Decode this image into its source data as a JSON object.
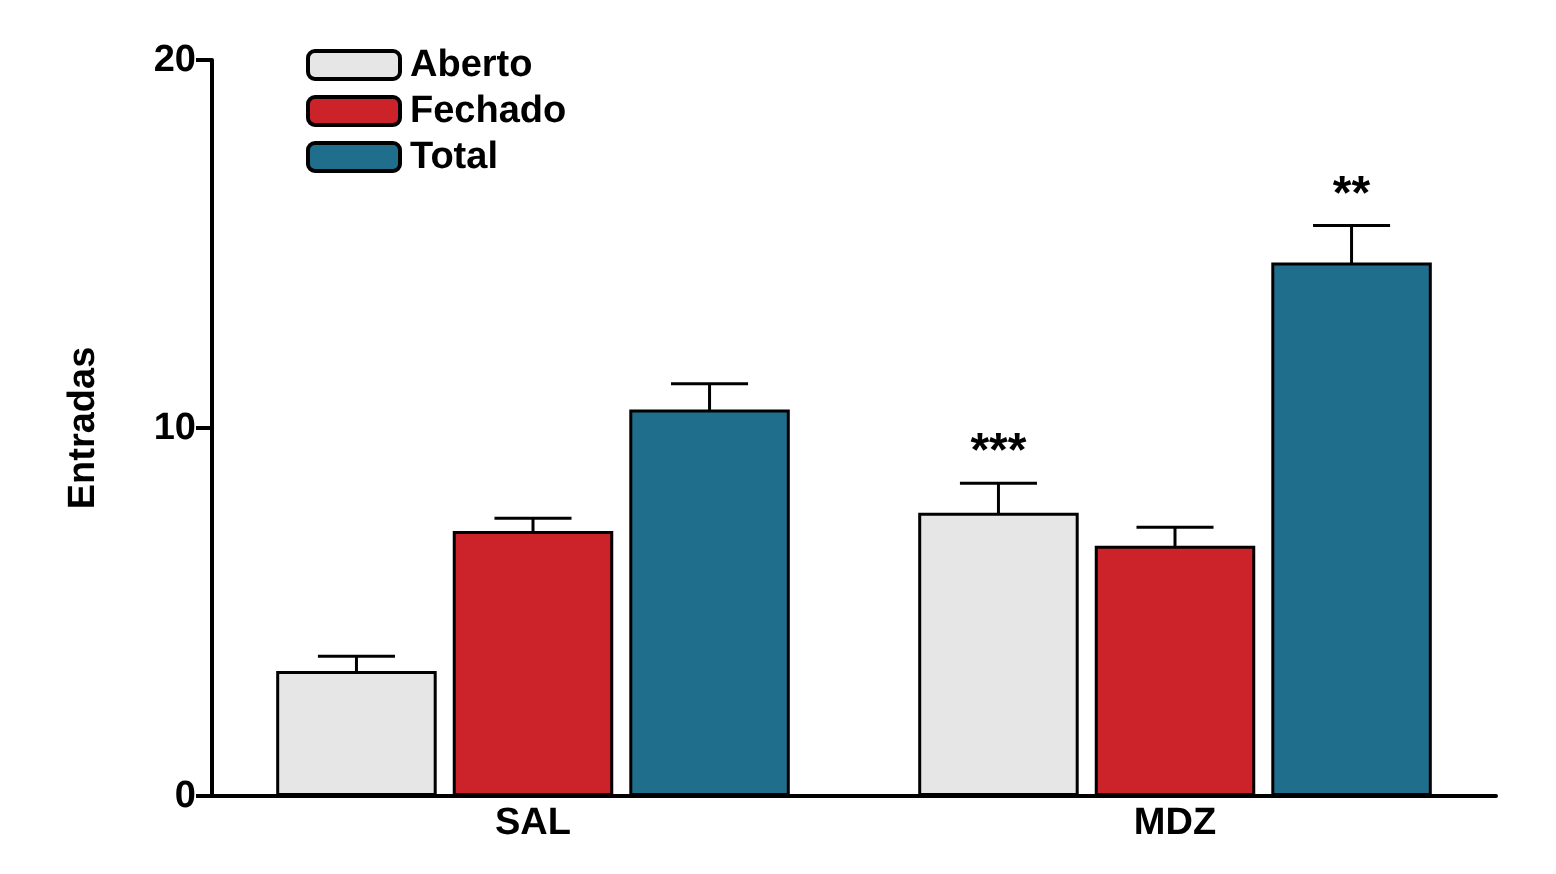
{
  "chart_data": {
    "type": "bar",
    "ylabel": "Entradas",
    "categories": [
      "SAL",
      "MDZ"
    ],
    "series": [
      {
        "name": "Aberto",
        "color": "#e6e6e6",
        "values": [
          3.4,
          7.7
        ],
        "errors": [
          0.4,
          0.8
        ],
        "value_labels": [
          null,
          "***"
        ]
      },
      {
        "name": "Fechado",
        "color": "#cc2229",
        "values": [
          7.2,
          6.8
        ],
        "errors": [
          0.35,
          0.5
        ]
      },
      {
        "name": "Total",
        "color": "#1f6e8c",
        "values": [
          10.5,
          14.5
        ],
        "errors": [
          0.7,
          1.0
        ],
        "value_labels": [
          null,
          "**"
        ]
      }
    ],
    "ylim": [
      0,
      20
    ],
    "yticks": [
      0,
      10,
      20
    ],
    "grid": false,
    "legend": "top left"
  }
}
